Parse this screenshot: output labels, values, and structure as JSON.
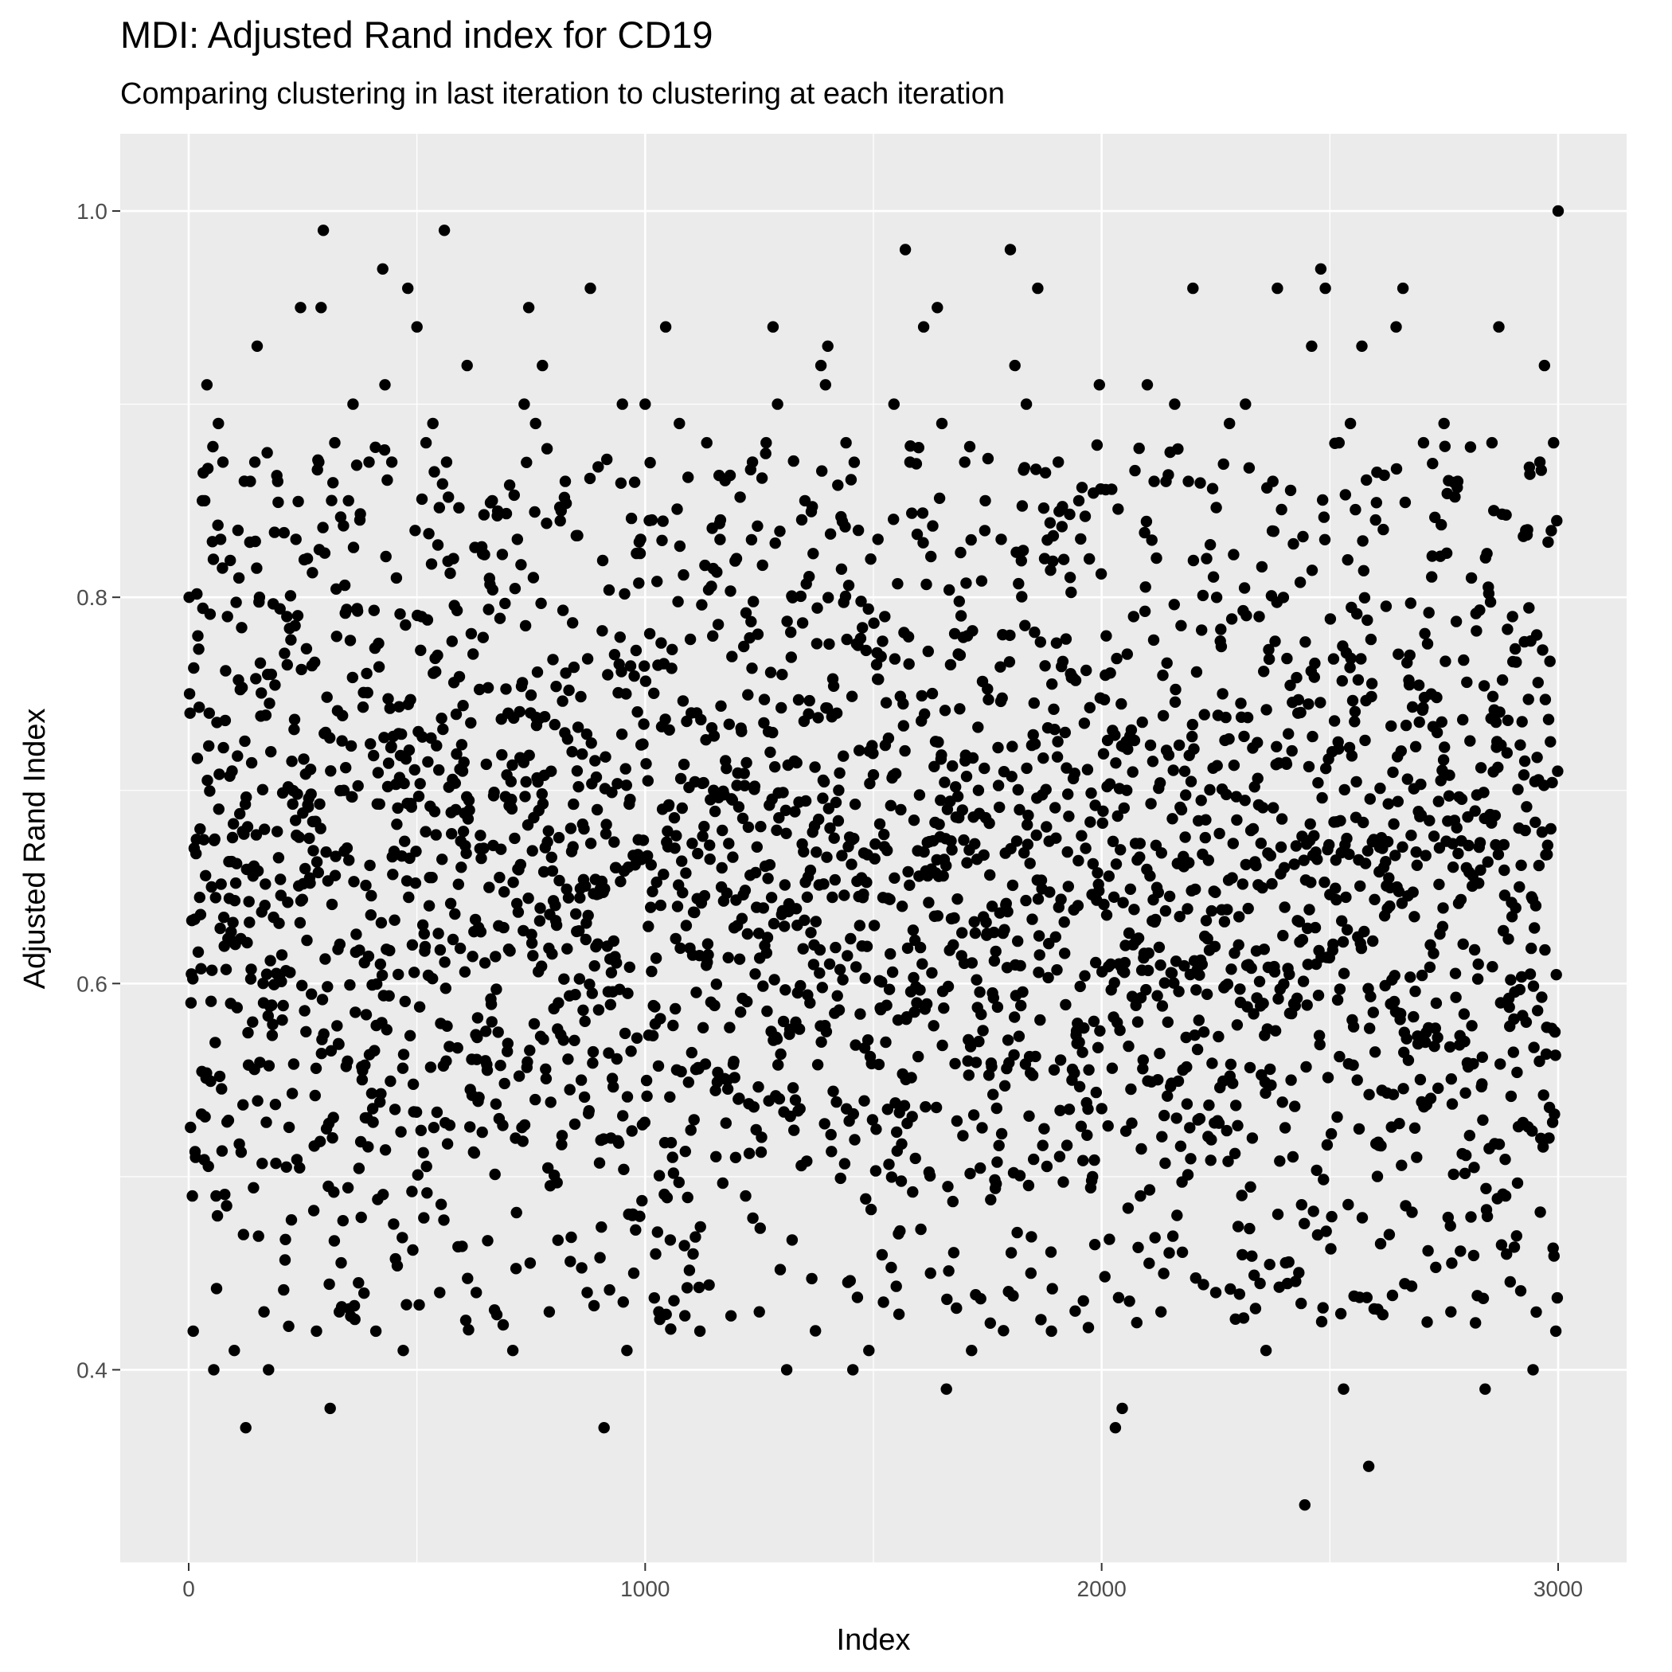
{
  "chart_data": {
    "type": "scatter",
    "title": "MDI: Adjusted Rand index for CD19",
    "subtitle": "Comparing clustering in last iteration to clustering at each iteration",
    "xlabel": "Index",
    "ylabel": "Adjusted Rand Index",
    "xlim": [
      -150,
      3150
    ],
    "ylim": [
      0.3,
      1.04
    ],
    "x_ticks": [
      0,
      1000,
      2000,
      3000
    ],
    "x_tick_labels": [
      "0",
      "1000",
      "2000",
      "3000"
    ],
    "y_ticks": [
      0.4,
      0.6,
      0.8,
      1.0
    ],
    "y_tick_labels": [
      "0.4",
      "0.6",
      "0.8",
      "1.0"
    ],
    "x_minor_ticks": [
      500,
      1500,
      2500
    ],
    "y_minor_ticks": [
      0.3,
      0.5,
      0.7,
      0.9
    ],
    "grid": true,
    "legend": "none",
    "n_points": 3000,
    "x_range": [
      1,
      3000
    ],
    "value_distribution": {
      "center": 0.65,
      "typical_low": 0.42,
      "typical_high": 0.88
    },
    "points": [
      [
        1,
        0.8
      ],
      [
        2,
        0.75
      ],
      [
        3,
        0.74
      ],
      [
        5,
        0.59
      ],
      [
        8,
        0.49
      ],
      [
        10,
        0.42
      ],
      [
        12,
        0.67
      ],
      [
        15,
        0.51
      ],
      [
        20,
        0.78
      ],
      [
        25,
        0.68
      ],
      [
        30,
        0.85
      ],
      [
        35,
        0.85
      ],
      [
        40,
        0.91
      ],
      [
        45,
        0.74
      ],
      [
        50,
        0.65
      ],
      [
        55,
        0.4
      ],
      [
        60,
        0.49
      ],
      [
        65,
        0.89
      ],
      [
        70,
        0.83
      ],
      [
        75,
        0.87
      ],
      [
        85,
        0.79
      ],
      [
        95,
        0.71
      ],
      [
        100,
        0.41
      ],
      [
        110,
        0.81
      ],
      [
        120,
        0.47
      ],
      [
        125,
        0.37
      ],
      [
        135,
        0.86
      ],
      [
        145,
        0.87
      ],
      [
        150,
        0.93
      ],
      [
        155,
        0.8
      ],
      [
        165,
        0.43
      ],
      [
        175,
        0.4
      ],
      [
        180,
        0.72
      ],
      [
        195,
        0.86
      ],
      [
        215,
        0.79
      ],
      [
        235,
        0.83
      ],
      [
        245,
        0.95
      ],
      [
        260,
        0.82
      ],
      [
        280,
        0.42
      ],
      [
        285,
        0.87
      ],
      [
        290,
        0.95
      ],
      [
        295,
        0.99
      ],
      [
        300,
        0.73
      ],
      [
        310,
        0.38
      ],
      [
        320,
        0.88
      ],
      [
        330,
        0.43
      ],
      [
        340,
        0.7
      ],
      [
        350,
        0.85
      ],
      [
        360,
        0.9
      ],
      [
        375,
        0.84
      ],
      [
        395,
        0.87
      ],
      [
        410,
        0.42
      ],
      [
        420,
        0.61
      ],
      [
        425,
        0.97
      ],
      [
        430,
        0.91
      ],
      [
        445,
        0.87
      ],
      [
        455,
        0.81
      ],
      [
        470,
        0.41
      ],
      [
        480,
        0.96
      ],
      [
        490,
        0.62
      ],
      [
        500,
        0.94
      ],
      [
        510,
        0.79
      ],
      [
        520,
        0.88
      ],
      [
        535,
        0.89
      ],
      [
        550,
        0.44
      ],
      [
        560,
        0.99
      ],
      [
        565,
        0.87
      ],
      [
        580,
        0.82
      ],
      [
        600,
        0.71
      ],
      [
        610,
        0.92
      ],
      [
        630,
        0.44
      ],
      [
        650,
        0.56
      ],
      [
        665,
        0.85
      ],
      [
        680,
        0.53
      ],
      [
        700,
        0.74
      ],
      [
        710,
        0.41
      ],
      [
        720,
        0.83
      ],
      [
        735,
        0.9
      ],
      [
        745,
        0.95
      ],
      [
        760,
        0.89
      ],
      [
        775,
        0.92
      ],
      [
        790,
        0.43
      ],
      [
        810,
        0.59
      ],
      [
        825,
        0.86
      ],
      [
        840,
        0.72
      ],
      [
        860,
        0.55
      ],
      [
        880,
        0.96
      ],
      [
        895,
        0.69
      ],
      [
        910,
        0.37
      ],
      [
        925,
        0.52
      ],
      [
        935,
        0.66
      ],
      [
        950,
        0.9
      ],
      [
        960,
        0.41
      ],
      [
        975,
        0.45
      ],
      [
        990,
        0.83
      ],
      [
        1000,
        0.9
      ],
      [
        1015,
        0.84
      ],
      [
        1030,
        0.43
      ],
      [
        1045,
        0.94
      ],
      [
        1060,
        0.51
      ],
      [
        1075,
        0.89
      ],
      [
        1090,
        0.63
      ],
      [
        1105,
        0.46
      ],
      [
        1120,
        0.42
      ],
      [
        1135,
        0.88
      ],
      [
        1150,
        0.7
      ],
      [
        1165,
        0.84
      ],
      [
        1180,
        0.55
      ],
      [
        1200,
        0.82
      ],
      [
        1220,
        0.49
      ],
      [
        1235,
        0.87
      ],
      [
        1250,
        0.43
      ],
      [
        1265,
        0.88
      ],
      [
        1280,
        0.94
      ],
      [
        1290,
        0.9
      ],
      [
        1300,
        0.76
      ],
      [
        1310,
        0.4
      ],
      [
        1330,
        0.58
      ],
      [
        1350,
        0.85
      ],
      [
        1370,
        0.62
      ],
      [
        1385,
        0.92
      ],
      [
        1395,
        0.91
      ],
      [
        1400,
        0.93
      ],
      [
        1420,
        0.74
      ],
      [
        1440,
        0.88
      ],
      [
        1455,
        0.4
      ],
      [
        1470,
        0.63
      ],
      [
        1490,
        0.41
      ],
      [
        1510,
        0.83
      ],
      [
        1525,
        0.79
      ],
      [
        1545,
        0.9
      ],
      [
        1560,
        0.69
      ],
      [
        1570,
        0.98
      ],
      [
        1580,
        0.87
      ],
      [
        1595,
        0.59
      ],
      [
        1610,
        0.94
      ],
      [
        1625,
        0.45
      ],
      [
        1640,
        0.95
      ],
      [
        1650,
        0.89
      ],
      [
        1660,
        0.39
      ],
      [
        1675,
        0.62
      ],
      [
        1690,
        0.77
      ],
      [
        1700,
        0.87
      ],
      [
        1715,
        0.41
      ],
      [
        1730,
        0.7
      ],
      [
        1745,
        0.85
      ],
      [
        1760,
        0.64
      ],
      [
        1780,
        0.83
      ],
      [
        1800,
        0.98
      ],
      [
        1810,
        0.92
      ],
      [
        1820,
        0.69
      ],
      [
        1835,
        0.9
      ],
      [
        1845,
        0.45
      ],
      [
        1860,
        0.96
      ],
      [
        1875,
        0.82
      ],
      [
        1890,
        0.42
      ],
      [
        1905,
        0.87
      ],
      [
        1920,
        0.73
      ],
      [
        1935,
        0.55
      ],
      [
        1950,
        0.85
      ],
      [
        1965,
        0.67
      ],
      [
        1980,
        0.5
      ],
      [
        1995,
        0.91
      ],
      [
        2010,
        0.78
      ],
      [
        2020,
        0.61
      ],
      [
        2030,
        0.37
      ],
      [
        2045,
        0.38
      ],
      [
        2055,
        0.7
      ],
      [
        2070,
        0.79
      ],
      [
        2085,
        0.49
      ],
      [
        2100,
        0.91
      ],
      [
        2115,
        0.86
      ],
      [
        2130,
        0.43
      ],
      [
        2145,
        0.58
      ],
      [
        2160,
        0.9
      ],
      [
        2175,
        0.69
      ],
      [
        2190,
        0.86
      ],
      [
        2200,
        0.96
      ],
      [
        2215,
        0.53
      ],
      [
        2230,
        0.82
      ],
      [
        2250,
        0.44
      ],
      [
        2265,
        0.75
      ],
      [
        2280,
        0.89
      ],
      [
        2300,
        0.62
      ],
      [
        2315,
        0.9
      ],
      [
        2330,
        0.52
      ],
      [
        2345,
        0.79
      ],
      [
        2360,
        0.41
      ],
      [
        2375,
        0.86
      ],
      [
        2385,
        0.96
      ],
      [
        2400,
        0.66
      ],
      [
        2415,
        0.55
      ],
      [
        2430,
        0.74
      ],
      [
        2445,
        0.33
      ],
      [
        2460,
        0.93
      ],
      [
        2470,
        0.61
      ],
      [
        2480,
        0.97
      ],
      [
        2490,
        0.96
      ],
      [
        2505,
        0.72
      ],
      [
        2520,
        0.88
      ],
      [
        2530,
        0.39
      ],
      [
        2545,
        0.89
      ],
      [
        2560,
        0.55
      ],
      [
        2570,
        0.93
      ],
      [
        2585,
        0.35
      ],
      [
        2600,
        0.84
      ],
      [
        2615,
        0.67
      ],
      [
        2630,
        0.47
      ],
      [
        2645,
        0.94
      ],
      [
        2660,
        0.96
      ],
      [
        2675,
        0.77
      ],
      [
        2690,
        0.51
      ],
      [
        2705,
        0.88
      ],
      [
        2720,
        0.62
      ],
      [
        2735,
        0.73
      ],
      [
        2750,
        0.89
      ],
      [
        2765,
        0.43
      ],
      [
        2780,
        0.86
      ],
      [
        2795,
        0.57
      ],
      [
        2810,
        0.81
      ],
      [
        2825,
        0.61
      ],
      [
        2840,
        0.39
      ],
      [
        2855,
        0.88
      ],
      [
        2870,
        0.94
      ],
      [
        2885,
        0.49
      ],
      [
        2900,
        0.79
      ],
      [
        2915,
        0.65
      ],
      [
        2930,
        0.58
      ],
      [
        2945,
        0.4
      ],
      [
        2960,
        0.87
      ],
      [
        2970,
        0.92
      ],
      [
        2980,
        0.52
      ],
      [
        2990,
        0.88
      ],
      [
        2995,
        0.42
      ],
      [
        3000,
        1.0
      ]
    ]
  }
}
